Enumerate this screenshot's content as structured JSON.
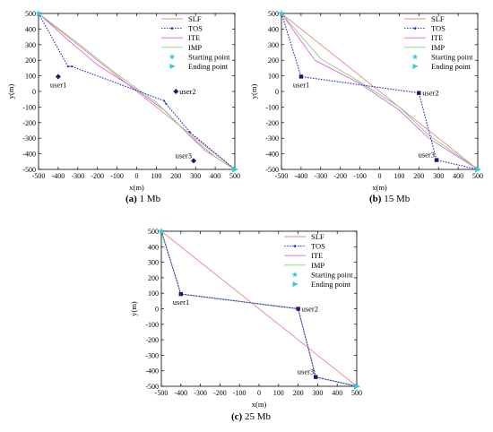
{
  "figure": {
    "panels": [
      {
        "label": "(a)",
        "caption": "1 Mb"
      },
      {
        "label": "(b)",
        "caption": "15 Mb"
      },
      {
        "label": "(c)",
        "caption": "25 Mb"
      }
    ]
  },
  "chart_data": [
    {
      "type": "line",
      "panel": "(a)",
      "caption": "1 Mb",
      "xlabel": "x(m)",
      "ylabel": "y(m)",
      "xlim": [
        -500,
        500
      ],
      "ylim": [
        -500,
        500
      ],
      "xticks": [
        -500,
        -400,
        -300,
        -200,
        -100,
        0,
        100,
        200,
        300,
        400,
        500
      ],
      "yticks": [
        -500,
        -400,
        -300,
        -200,
        -100,
        0,
        100,
        200,
        300,
        400,
        500
      ],
      "grid": false,
      "legend_position": "top-right",
      "series": [
        {
          "name": "SLF",
          "color": "#e8868f",
          "marker": "none",
          "x": [
            -500,
            500
          ],
          "y": [
            500,
            -500
          ]
        },
        {
          "name": "TOS",
          "color": "#2b2bd0",
          "marker": "dot",
          "x": [
            -500,
            -350,
            -330,
            140,
            150,
            270,
            500
          ],
          "y": [
            500,
            160,
            160,
            -60,
            -80,
            -260,
            -500
          ]
        },
        {
          "name": "ITE",
          "color": "#e060e0",
          "marker": "none",
          "x": [
            -500,
            -350,
            -200,
            0,
            150,
            250,
            350,
            500
          ],
          "y": [
            500,
            330,
            170,
            10,
            -130,
            -260,
            -380,
            -500
          ]
        },
        {
          "name": "IMP",
          "color": "#80d080",
          "marker": "none",
          "x": [
            -500,
            -300,
            -100,
            100,
            260,
            400,
            500
          ],
          "y": [
            500,
            310,
            110,
            -70,
            -270,
            -420,
            -500
          ]
        }
      ],
      "legend_markers": [
        {
          "name": "Starting point",
          "symbol": "star",
          "color": "#35c8dc"
        },
        {
          "name": "Ending point",
          "symbol": "triangle-right",
          "color": "#35c8dc"
        }
      ],
      "start_point": {
        "x": -500,
        "y": 500
      },
      "end_point": {
        "x": 500,
        "y": -500
      },
      "users": [
        {
          "label": "user1",
          "x": -400,
          "y": 95,
          "color": "#3a0a6e"
        },
        {
          "label": "user2",
          "x": 200,
          "y": 0,
          "color": "#3a0a6e"
        },
        {
          "label": "user3",
          "x": 290,
          "y": -445,
          "color": "#3a0a6e"
        }
      ]
    },
    {
      "type": "line",
      "panel": "(b)",
      "caption": "15 Mb",
      "xlabel": "x(m)",
      "ylabel": "y(m)",
      "xlim": [
        -500,
        500
      ],
      "ylim": [
        -500,
        500
      ],
      "xticks": [
        -500,
        -400,
        -300,
        -200,
        -100,
        0,
        100,
        200,
        300,
        400,
        500
      ],
      "yticks": [
        -500,
        -400,
        -300,
        -200,
        -100,
        0,
        100,
        200,
        300,
        400,
        500
      ],
      "grid": false,
      "legend_position": "top-right",
      "series": [
        {
          "name": "SLF",
          "color": "#e8868f",
          "marker": "none",
          "x": [
            -500,
            500
          ],
          "y": [
            500,
            -500
          ]
        },
        {
          "name": "TOS",
          "color": "#2b2bd0",
          "marker": "dot",
          "x": [
            -500,
            -400,
            200,
            290,
            500
          ],
          "y": [
            500,
            95,
            -10,
            -440,
            -500
          ]
        },
        {
          "name": "ITE",
          "color": "#e060e0",
          "marker": "none",
          "x": [
            -500,
            -330,
            -100,
            100,
            250,
            500
          ],
          "y": [
            500,
            200,
            50,
            -120,
            -300,
            -500
          ]
        },
        {
          "name": "IMP",
          "color": "#80d080",
          "marker": "none",
          "x": [
            -500,
            -300,
            -100,
            100,
            250,
            500
          ],
          "y": [
            500,
            210,
            60,
            -100,
            -280,
            -500
          ]
        }
      ],
      "legend_markers": [
        {
          "name": "Starting point",
          "symbol": "star",
          "color": "#35c8dc"
        },
        {
          "name": "Ending point",
          "symbol": "triangle-right",
          "color": "#35c8dc"
        }
      ],
      "start_point": {
        "x": -500,
        "y": 500
      },
      "end_point": {
        "x": 500,
        "y": -500
      },
      "users": [
        {
          "label": "user1",
          "x": -400,
          "y": 95,
          "color": "#3a0a6e"
        },
        {
          "label": "user2",
          "x": 200,
          "y": -10,
          "color": "#3a0a6e"
        },
        {
          "label": "user3",
          "x": 290,
          "y": -440,
          "color": "#3a0a6e"
        }
      ]
    },
    {
      "type": "line",
      "panel": "(c)",
      "caption": "25 Mb",
      "xlabel": "x(m)",
      "ylabel": "y(m)",
      "xlim": [
        -500,
        500
      ],
      "ylim": [
        -500,
        500
      ],
      "xticks": [
        -500,
        -400,
        -300,
        -200,
        -100,
        0,
        100,
        200,
        300,
        400,
        500
      ],
      "yticks": [
        -500,
        -400,
        -300,
        -200,
        -100,
        0,
        100,
        200,
        300,
        400,
        500
      ],
      "grid": false,
      "legend_position": "top-right",
      "series": [
        {
          "name": "SLF",
          "color": "#e8868f",
          "marker": "none",
          "x": [
            -500,
            500
          ],
          "y": [
            500,
            -500
          ]
        },
        {
          "name": "TOS",
          "color": "#2b2bd0",
          "marker": "dot",
          "x": [
            -500,
            -400,
            200,
            290,
            500
          ],
          "y": [
            500,
            95,
            0,
            -440,
            -500
          ]
        },
        {
          "name": "ITE",
          "color": "#e060e0",
          "marker": "none",
          "x": [
            -500,
            -400,
            200,
            290,
            500
          ],
          "y": [
            500,
            95,
            0,
            -440,
            -500
          ]
        },
        {
          "name": "IMP",
          "color": "#80d080",
          "marker": "none",
          "x": [
            -500,
            -400,
            200,
            290,
            500
          ],
          "y": [
            500,
            95,
            0,
            -440,
            -500
          ]
        }
      ],
      "legend_markers": [
        {
          "name": "Starting point",
          "symbol": "star",
          "color": "#35c8dc"
        },
        {
          "name": "Ending point",
          "symbol": "triangle-right",
          "color": "#35c8dc"
        }
      ],
      "start_point": {
        "x": -500,
        "y": 500
      },
      "end_point": {
        "x": 500,
        "y": -500
      },
      "users": [
        {
          "label": "user1",
          "x": -400,
          "y": 95,
          "color": "#3a0a6e"
        },
        {
          "label": "user2",
          "x": 200,
          "y": 0,
          "color": "#3a0a6e"
        },
        {
          "label": "user3",
          "x": 290,
          "y": -440,
          "color": "#3a0a6e"
        }
      ]
    }
  ]
}
